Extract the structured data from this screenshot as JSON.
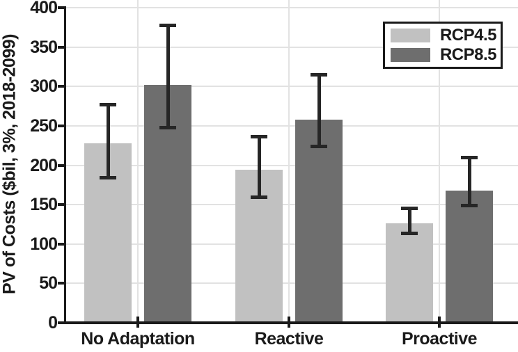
{
  "chart_data": {
    "type": "bar",
    "title": "",
    "categories": [
      "No Adaptation",
      "Reactive",
      "Proactive"
    ],
    "series": [
      {
        "name": "RCP4.5",
        "color": "#c1c1c1",
        "values": [
          228,
          194,
          126
        ],
        "err_low": [
          184,
          159,
          113
        ],
        "err_high": [
          277,
          237,
          146
        ]
      },
      {
        "name": "RCP8.5",
        "color": "#6e6e6e",
        "values": [
          302,
          258,
          168
        ],
        "err_low": [
          247,
          223,
          148
        ],
        "err_high": [
          378,
          315,
          210
        ]
      }
    ],
    "xlabel": "",
    "ylabel": "PV of Costs ($bil, 3%, 2018-2099)",
    "ylim": [
      0,
      400
    ],
    "yticks": [
      0,
      50,
      100,
      150,
      200,
      250,
      300,
      350,
      400
    ],
    "grid": true,
    "legend_position": "top-right",
    "error_bar_color": "#262626",
    "axis_color": "#1a1a1a",
    "gridline_color": "#e2e2e2"
  }
}
